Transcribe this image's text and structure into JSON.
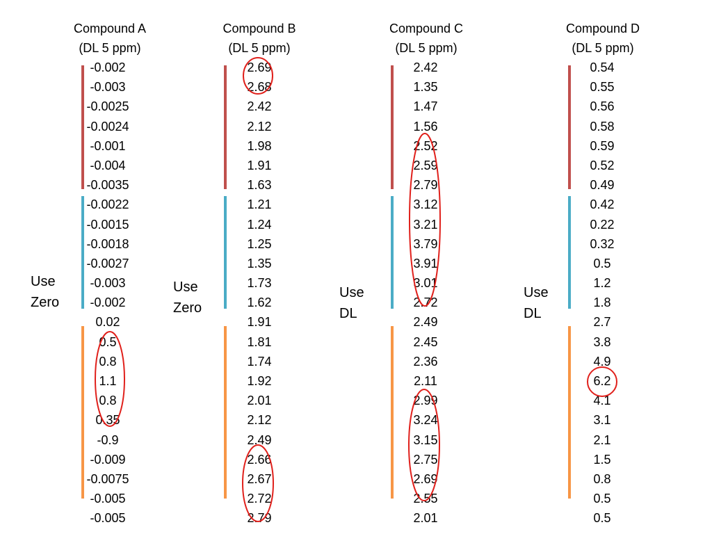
{
  "compounds": [
    {
      "name": "Compound A",
      "dl_label": "(DL 5 ppm)",
      "note": [
        "Use",
        "Zero"
      ],
      "values": [
        "-0.002",
        "-0.003",
        "-0.0025",
        "-0.0024",
        "-0.001",
        "-0.004",
        "-0.0035",
        "-0.0022",
        "-0.0015",
        "-0.0018",
        "-0.0027",
        "-0.003",
        "-0.002",
        "0.02",
        "0.5",
        "0.8",
        "1.1",
        "0.8",
        "0.35",
        "-0.9",
        "-0.009",
        "-0.0075",
        "-0.005",
        "-0.005"
      ]
    },
    {
      "name": "Compound B",
      "dl_label": "(DL 5 ppm)",
      "note": [
        "Use",
        "Zero"
      ],
      "values": [
        "2.69",
        "2.68",
        "2.42",
        "2.12",
        "1.98",
        "1.91",
        "1.63",
        "1.21",
        "1.24",
        "1.25",
        "1.35",
        "1.73",
        "1.62",
        "1.91",
        "1.81",
        "1.74",
        "1.92",
        "2.01",
        "2.12",
        "2.49",
        "2.66",
        "2.67",
        "2.72",
        "2.79"
      ]
    },
    {
      "name": "Compound C",
      "dl_label": "(DL 5 ppm)",
      "note": [
        "Use",
        "DL"
      ],
      "values": [
        "2.42",
        "1.35",
        "1.47",
        "1.56",
        "2.52",
        "2.59",
        "2.79",
        "3.12",
        "3.21",
        "3.79",
        "3.91",
        "3.01",
        "2.72",
        "2.49",
        "2.45",
        "2.36",
        "2.11",
        "2.99",
        "3.24",
        "3.15",
        "2.75",
        "2.69",
        "2.55",
        "2.01"
      ]
    },
    {
      "name": "Compound D",
      "dl_label": "(DL 5 ppm)",
      "note": [
        "Use",
        "DL"
      ],
      "values": [
        "0.54",
        "0.55",
        "0.56",
        "0.58",
        "0.59",
        "0.52",
        "0.49",
        "0.42",
        "0.22",
        "0.32",
        "0.5",
        "1.2",
        "1.8",
        "2.7",
        "3.8",
        "4.9",
        "6.2",
        "4.1",
        "3.1",
        "2.1",
        "1.5",
        "0.8",
        "0.5",
        "0.5"
      ]
    }
  ],
  "group_colors": [
    "#c0504d",
    "#4bacc6",
    "#f79646"
  ],
  "highlight_color": "#e0201b"
}
